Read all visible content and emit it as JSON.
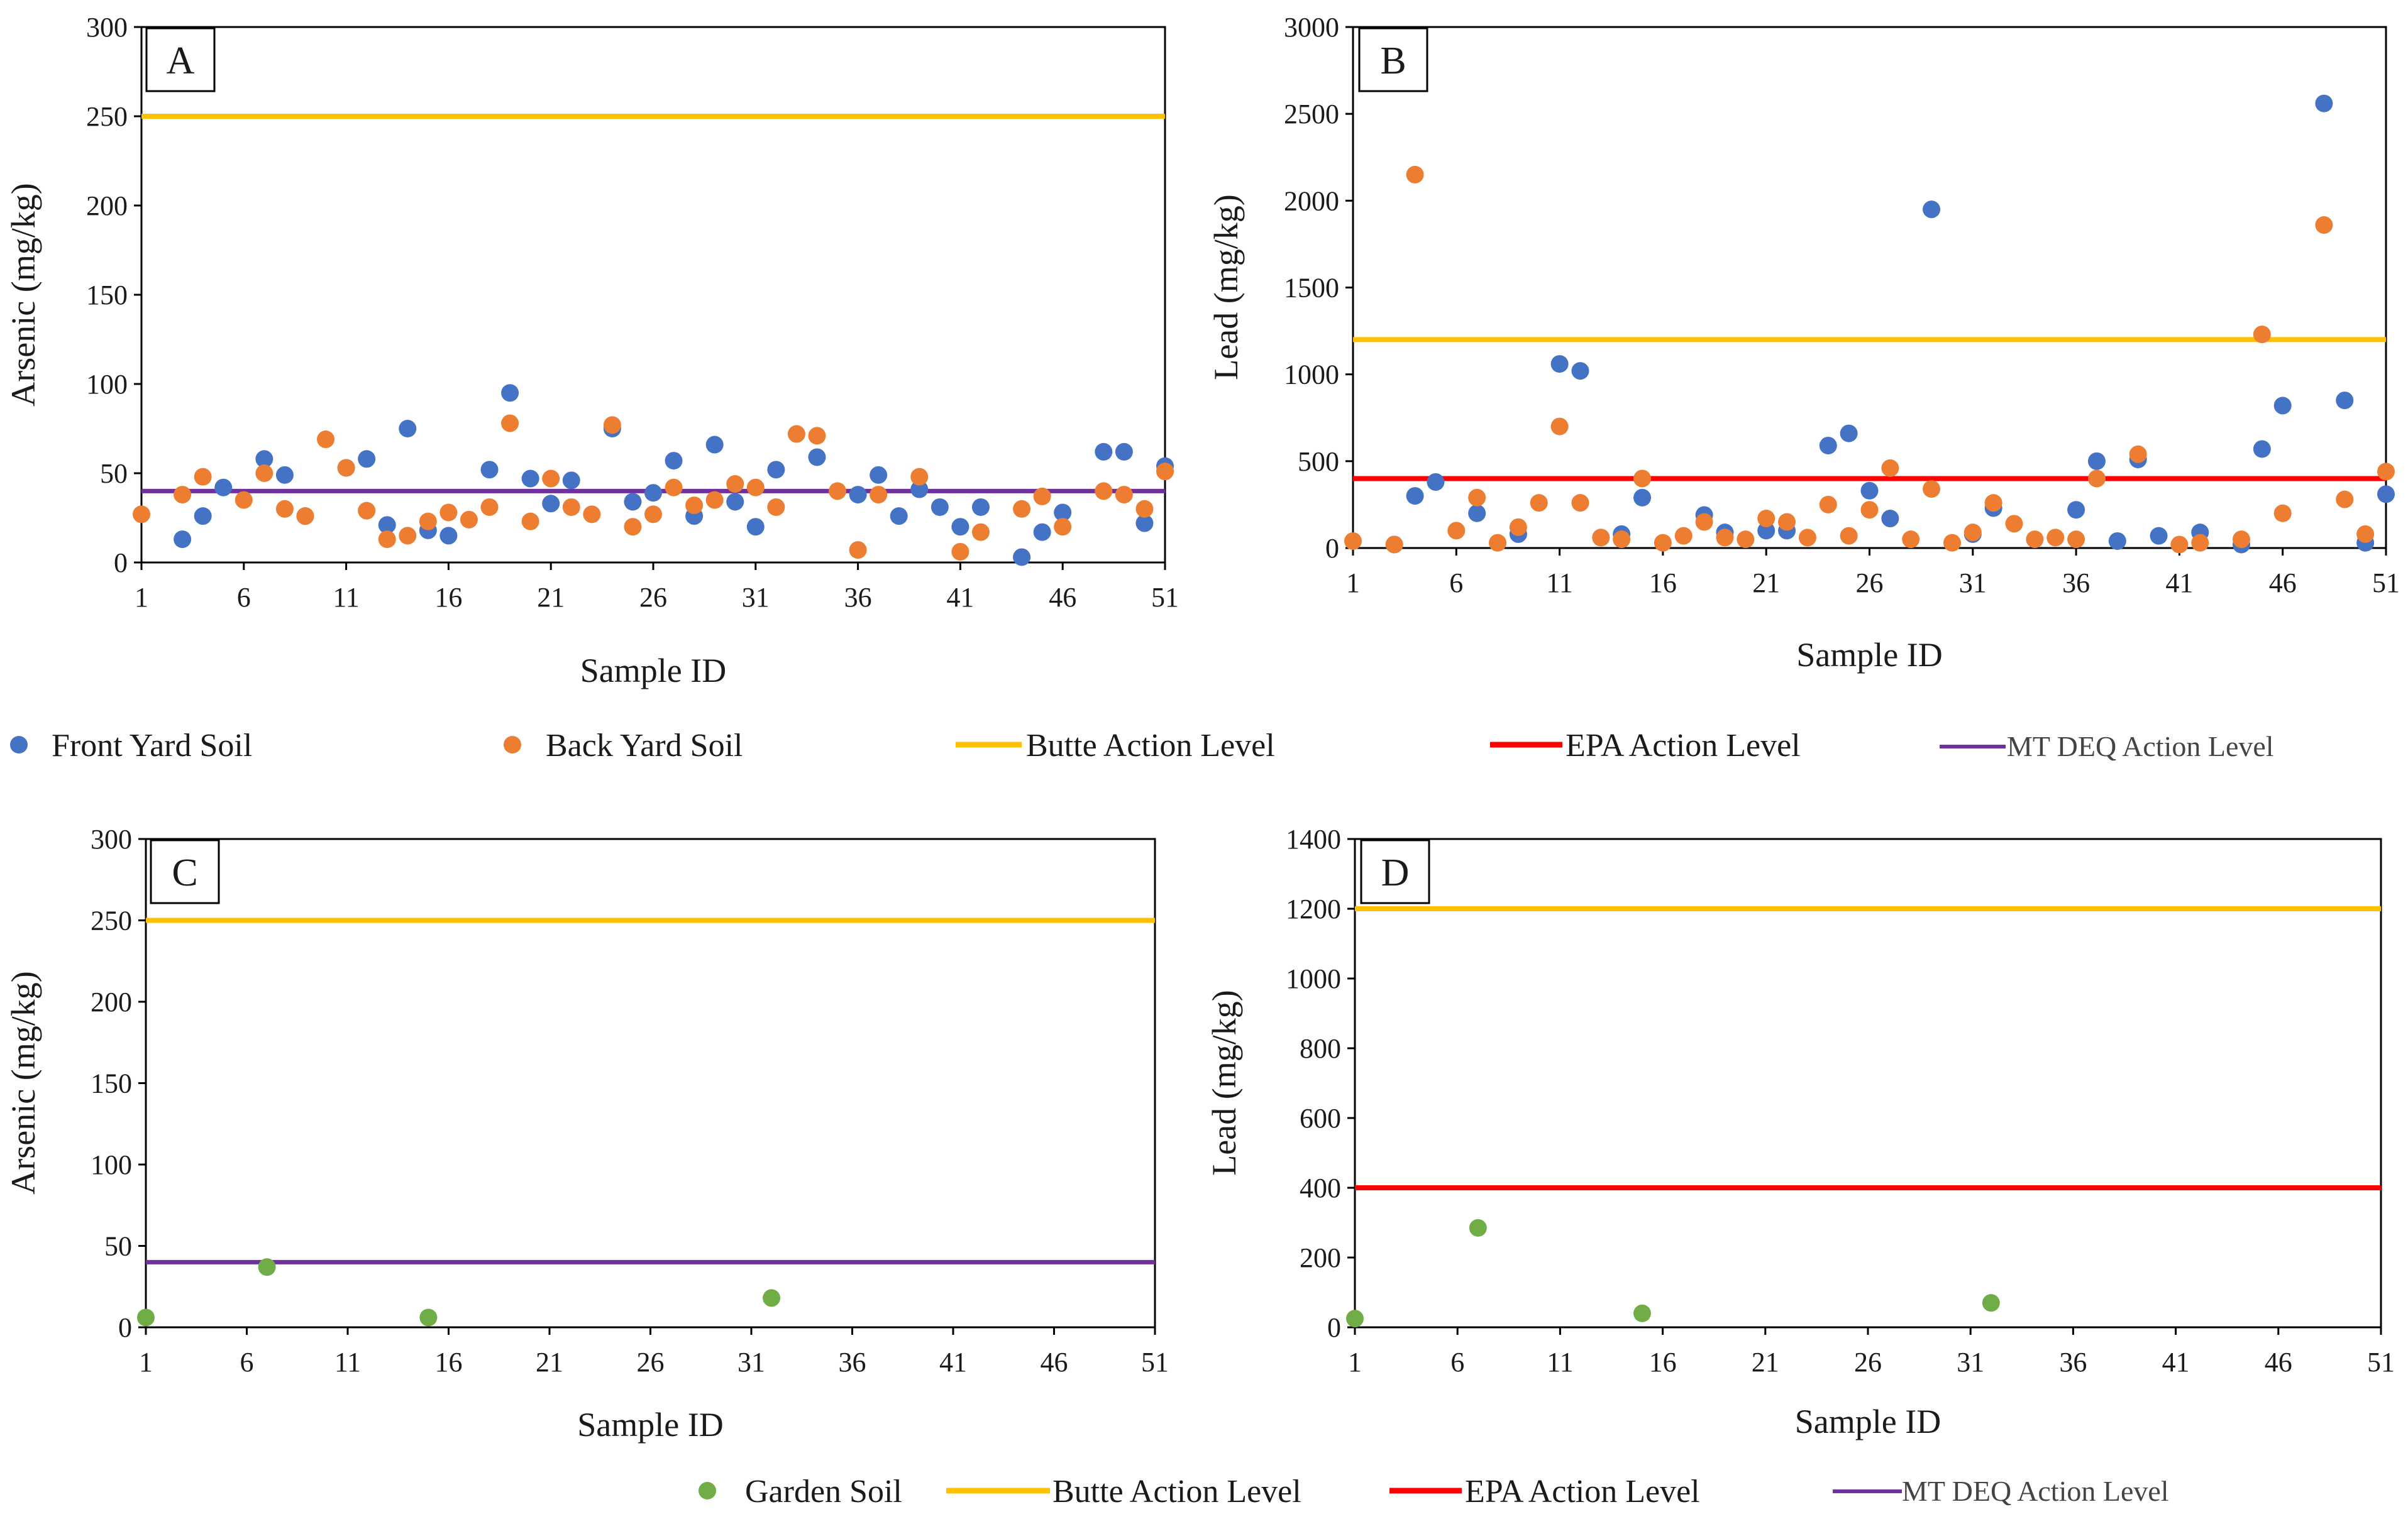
{
  "colors": {
    "front": "#4472C4",
    "back": "#ED7D31",
    "garden": "#70AD47",
    "butte": "#FFC000",
    "epa": "#FF0000",
    "mtdeq": "#7030A0"
  },
  "legend_top": {
    "front": "Front Yard Soil",
    "back": "Back Yard Soil",
    "butte": "Butte Action Level",
    "epa": "EPA Action Level",
    "mtdeq": "MT DEQ Action Level"
  },
  "legend_bottom": {
    "garden": "Garden Soil",
    "butte": "Butte Action Level",
    "epa": "EPA Action Level",
    "mtdeq": "MT DEQ Action Level"
  },
  "chart_data": [
    {
      "type": "scatter",
      "panel": "A",
      "xlabel": "Sample ID",
      "ylabel": "Arsenic (mg/kg)",
      "xlim": [
        1,
        51
      ],
      "ylim": [
        0,
        300
      ],
      "yticks": [
        0,
        50,
        100,
        150,
        200,
        250,
        300
      ],
      "xticks": [
        1,
        6,
        11,
        16,
        21,
        26,
        31,
        36,
        41,
        46,
        51
      ],
      "series": [
        {
          "name": "Front Yard Soil",
          "color_key": "front",
          "points": [
            [
              3,
              13
            ],
            [
              4,
              26
            ],
            [
              5,
              42
            ],
            [
              7,
              58
            ],
            [
              8,
              49
            ],
            [
              9,
              26
            ],
            [
              11,
              53
            ],
            [
              12,
              58
            ],
            [
              13,
              21
            ],
            [
              14,
              75
            ],
            [
              15,
              18
            ],
            [
              16,
              15
            ],
            [
              18,
              52
            ],
            [
              19,
              95
            ],
            [
              20,
              47
            ],
            [
              21,
              33
            ],
            [
              22,
              46
            ],
            [
              24,
              75
            ],
            [
              25,
              34
            ],
            [
              26,
              39
            ],
            [
              27,
              57
            ],
            [
              28,
              26
            ],
            [
              29,
              66
            ],
            [
              30,
              34
            ],
            [
              31,
              20
            ],
            [
              32,
              52
            ],
            [
              34,
              59
            ],
            [
              36,
              38
            ],
            [
              37,
              49
            ],
            [
              38,
              26
            ],
            [
              39,
              41
            ],
            [
              40,
              31
            ],
            [
              41,
              20
            ],
            [
              42,
              31
            ],
            [
              44,
              3
            ],
            [
              45,
              17
            ],
            [
              46,
              28
            ],
            [
              48,
              62
            ],
            [
              49,
              62
            ],
            [
              50,
              22
            ],
            [
              51,
              54
            ]
          ]
        },
        {
          "name": "Back Yard Soil",
          "color_key": "back",
          "points": [
            [
              1,
              27
            ],
            [
              3,
              38
            ],
            [
              4,
              48
            ],
            [
              6,
              35
            ],
            [
              7,
              50
            ],
            [
              8,
              30
            ],
            [
              9,
              26
            ],
            [
              10,
              69
            ],
            [
              11,
              53
            ],
            [
              12,
              29
            ],
            [
              13,
              13
            ],
            [
              14,
              15
            ],
            [
              15,
              23
            ],
            [
              16,
              28
            ],
            [
              17,
              24
            ],
            [
              18,
              31
            ],
            [
              19,
              78
            ],
            [
              20,
              23
            ],
            [
              21,
              47
            ],
            [
              22,
              31
            ],
            [
              23,
              27
            ],
            [
              24,
              77
            ],
            [
              25,
              20
            ],
            [
              26,
              27
            ],
            [
              27,
              42
            ],
            [
              28,
              32
            ],
            [
              29,
              35
            ],
            [
              30,
              44
            ],
            [
              31,
              42
            ],
            [
              32,
              31
            ],
            [
              33,
              72
            ],
            [
              34,
              71
            ],
            [
              35,
              40
            ],
            [
              36,
              7
            ],
            [
              37,
              38
            ],
            [
              39,
              48
            ],
            [
              41,
              6
            ],
            [
              42,
              17
            ],
            [
              44,
              30
            ],
            [
              45,
              37
            ],
            [
              46,
              20
            ],
            [
              48,
              40
            ],
            [
              49,
              38
            ],
            [
              50,
              30
            ],
            [
              51,
              51
            ]
          ]
        }
      ],
      "hlines": [
        {
          "name": "Butte Action Level",
          "value": 250,
          "color_key": "butte"
        },
        {
          "name": "MT DEQ Action Level",
          "value": 40,
          "color_key": "mtdeq"
        }
      ]
    },
    {
      "type": "scatter",
      "panel": "B",
      "xlabel": "Sample ID",
      "ylabel": "Lead (mg/kg)",
      "xlim": [
        1,
        51
      ],
      "ylim": [
        0,
        3000
      ],
      "yticks": [
        0,
        500,
        1000,
        1500,
        2000,
        2500,
        3000
      ],
      "xticks": [
        1,
        6,
        11,
        16,
        21,
        26,
        31,
        36,
        41,
        46,
        51
      ],
      "series": [
        {
          "name": "Front Yard Soil",
          "color_key": "front",
          "points": [
            [
              3,
              20
            ],
            [
              4,
              300
            ],
            [
              5,
              380
            ],
            [
              7,
              200
            ],
            [
              9,
              80
            ],
            [
              11,
              1060
            ],
            [
              12,
              1020
            ],
            [
              13,
              60
            ],
            [
              14,
              80
            ],
            [
              15,
              290
            ],
            [
              18,
              190
            ],
            [
              19,
              90
            ],
            [
              21,
              100
            ],
            [
              22,
              100
            ],
            [
              24,
              590
            ],
            [
              25,
              660
            ],
            [
              26,
              330
            ],
            [
              27,
              170
            ],
            [
              29,
              1950
            ],
            [
              31,
              80
            ],
            [
              32,
              230
            ],
            [
              36,
              220
            ],
            [
              37,
              500
            ],
            [
              38,
              40
            ],
            [
              39,
              510
            ],
            [
              40,
              70
            ],
            [
              42,
              90
            ],
            [
              44,
              20
            ],
            [
              45,
              570
            ],
            [
              46,
              820
            ],
            [
              48,
              2560
            ],
            [
              49,
              850
            ],
            [
              50,
              30
            ],
            [
              51,
              310
            ]
          ]
        },
        {
          "name": "Back Yard Soil",
          "color_key": "back",
          "points": [
            [
              1,
              40
            ],
            [
              3,
              20
            ],
            [
              4,
              2150
            ],
            [
              6,
              100
            ],
            [
              7,
              290
            ],
            [
              8,
              30
            ],
            [
              9,
              120
            ],
            [
              10,
              260
            ],
            [
              11,
              700
            ],
            [
              12,
              260
            ],
            [
              13,
              60
            ],
            [
              14,
              50
            ],
            [
              15,
              400
            ],
            [
              16,
              30
            ],
            [
              17,
              70
            ],
            [
              18,
              150
            ],
            [
              19,
              60
            ],
            [
              20,
              50
            ],
            [
              21,
              170
            ],
            [
              22,
              150
            ],
            [
              23,
              60
            ],
            [
              24,
              250
            ],
            [
              25,
              70
            ],
            [
              26,
              220
            ],
            [
              27,
              460
            ],
            [
              28,
              50
            ],
            [
              29,
              340
            ],
            [
              30,
              30
            ],
            [
              31,
              90
            ],
            [
              32,
              260
            ],
            [
              33,
              140
            ],
            [
              34,
              50
            ],
            [
              35,
              60
            ],
            [
              36,
              50
            ],
            [
              37,
              400
            ],
            [
              39,
              540
            ],
            [
              41,
              20
            ],
            [
              42,
              30
            ],
            [
              44,
              50
            ],
            [
              45,
              1230
            ],
            [
              46,
              200
            ],
            [
              48,
              1860
            ],
            [
              49,
              280
            ],
            [
              50,
              80
            ],
            [
              51,
              440
            ]
          ]
        }
      ],
      "hlines": [
        {
          "name": "Butte Action Level",
          "value": 1200,
          "color_key": "butte"
        },
        {
          "name": "EPA Action Level",
          "value": 400,
          "color_key": "epa"
        }
      ]
    },
    {
      "type": "scatter",
      "panel": "C",
      "xlabel": "Sample ID",
      "ylabel": "Arsenic (mg/kg)",
      "xlim": [
        1,
        51
      ],
      "ylim": [
        0,
        300
      ],
      "yticks": [
        0,
        50,
        100,
        150,
        200,
        250,
        300
      ],
      "xticks": [
        1,
        6,
        11,
        16,
        21,
        26,
        31,
        36,
        41,
        46,
        51
      ],
      "series": [
        {
          "name": "Garden Soil",
          "color_key": "garden",
          "points": [
            [
              1,
              6
            ],
            [
              7,
              37
            ],
            [
              15,
              6
            ],
            [
              32,
              18
            ]
          ]
        }
      ],
      "hlines": [
        {
          "name": "Butte Action Level",
          "value": 250,
          "color_key": "butte"
        },
        {
          "name": "MT DEQ Action Level",
          "value": 40,
          "color_key": "mtdeq"
        }
      ]
    },
    {
      "type": "scatter",
      "panel": "D",
      "xlabel": "Sample ID",
      "ylabel": "Lead (mg/kg)",
      "xlim": [
        1,
        51
      ],
      "ylim": [
        0,
        1400
      ],
      "yticks": [
        0,
        200,
        400,
        600,
        800,
        1000,
        1200,
        1400
      ],
      "xticks": [
        1,
        6,
        11,
        16,
        21,
        26,
        31,
        36,
        41,
        46,
        51
      ],
      "series": [
        {
          "name": "Garden Soil",
          "color_key": "garden",
          "points": [
            [
              1,
              25
            ],
            [
              7,
              285
            ],
            [
              15,
              40
            ],
            [
              32,
              70
            ]
          ]
        }
      ],
      "hlines": [
        {
          "name": "Butte Action Level",
          "value": 1200,
          "color_key": "butte"
        },
        {
          "name": "EPA Action Level",
          "value": 400,
          "color_key": "epa"
        }
      ]
    }
  ]
}
